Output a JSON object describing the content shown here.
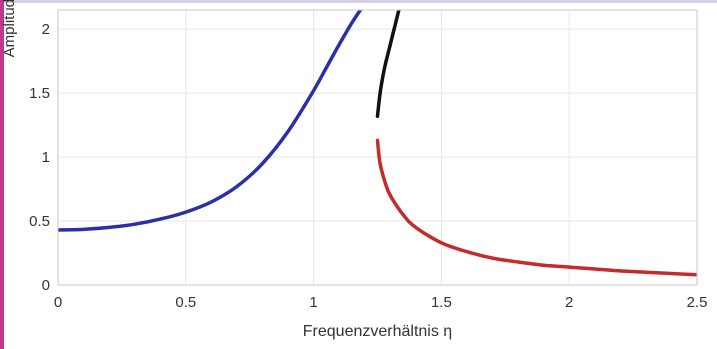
{
  "chart_data": {
    "type": "line",
    "xlabel": "Frequenzverhältnis η",
    "ylabel": "Amplitude",
    "xlim": [
      0,
      2.5
    ],
    "ylim": [
      0,
      2.15
    ],
    "grid": true,
    "x_ticks": [
      "0",
      "0.5",
      "1",
      "1.5",
      "2",
      "2.5"
    ],
    "y_ticks": [
      "0",
      "0.5",
      "1",
      "1.5",
      "2"
    ],
    "series": [
      {
        "color": "#2b2fa8",
        "x": [
          0,
          0.1,
          0.2,
          0.3,
          0.4,
          0.5,
          0.6,
          0.7,
          0.8,
          0.9,
          1.0,
          1.05,
          1.1,
          1.15,
          1.2
        ],
        "y": [
          0.43,
          0.435,
          0.45,
          0.475,
          0.515,
          0.57,
          0.65,
          0.77,
          0.95,
          1.2,
          1.52,
          1.7,
          1.88,
          2.05,
          2.2
        ]
      },
      {
        "color": "#111111",
        "x": [
          1.25,
          1.26,
          1.27,
          1.28,
          1.29,
          1.3,
          1.31,
          1.32,
          1.33,
          1.34
        ],
        "y": [
          1.32,
          1.5,
          1.62,
          1.72,
          1.8,
          1.88,
          1.96,
          2.04,
          2.12,
          2.2
        ]
      },
      {
        "color": "#c42b2b",
        "x": [
          1.25,
          1.26,
          1.28,
          1.3,
          1.35,
          1.4,
          1.5,
          1.6,
          1.7,
          1.8,
          1.9,
          2.0,
          2.1,
          2.2,
          2.3,
          2.4,
          2.5
        ],
        "y": [
          1.13,
          0.95,
          0.8,
          0.7,
          0.55,
          0.45,
          0.33,
          0.26,
          0.21,
          0.18,
          0.155,
          0.14,
          0.125,
          0.11,
          0.1,
          0.09,
          0.08
        ]
      }
    ]
  }
}
